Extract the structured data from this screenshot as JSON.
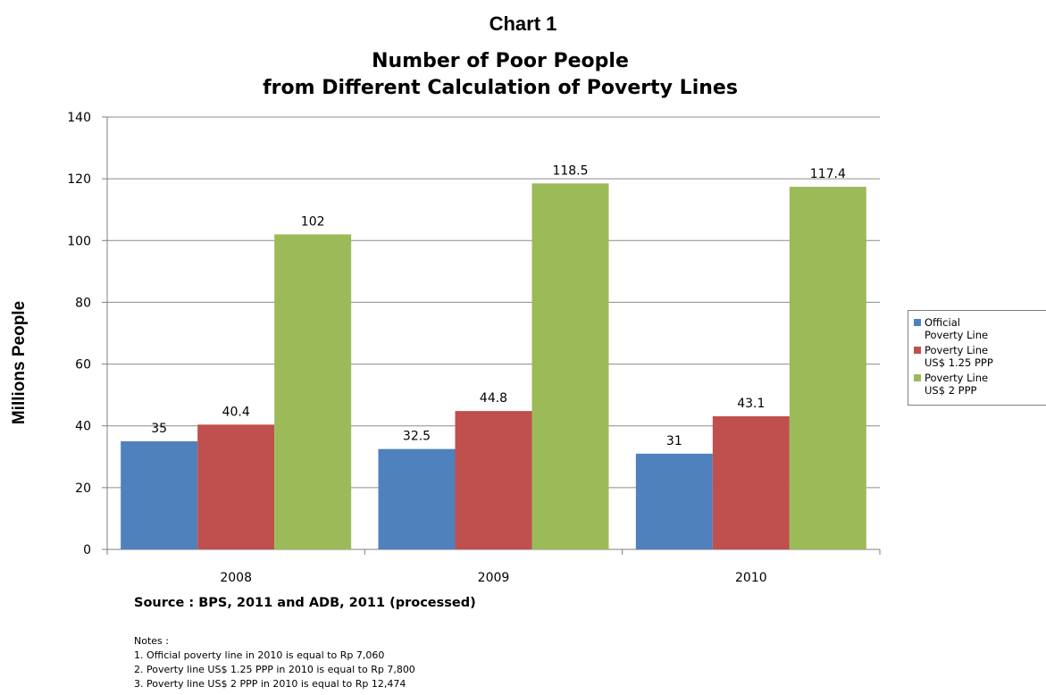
{
  "chart_label": "Chart 1",
  "chart_data": {
    "type": "bar",
    "title": [
      "Number of Poor People",
      "from Different Calculation of Poverty Lines"
    ],
    "ylabel": "Millions People",
    "xlabel": "",
    "categories": [
      "2008",
      "2009",
      "2010"
    ],
    "ylim": [
      0,
      140
    ],
    "yticks": [
      0,
      20,
      40,
      60,
      80,
      100,
      120,
      140
    ],
    "grid": true,
    "legend_position": "right",
    "series": [
      {
        "name": "Official\nPoverty Line",
        "color": "#4f81bd",
        "values": [
          35,
          32.5,
          31
        ]
      },
      {
        "name": "Poverty Line\nUS$ 1.25 PPP",
        "color": "#c0504d",
        "values": [
          40.4,
          44.8,
          43.1
        ]
      },
      {
        "name": "Poverty Line\nUS$ 2 PPP",
        "color": "#9bbb59",
        "values": [
          102,
          118.5,
          117.4
        ]
      }
    ]
  },
  "source": "Source : BPS, 2011 and ADB, 2011 (processed)",
  "notes": [
    "Notes :",
    "1. Official poverty line  in 2010  is equal to Rp  7,060",
    "2. Poverty line US$ 1.25 PPP in 2010 is equal to Rp 7,800",
    "3. Poverty line US$ 2 PPP in 2010 is equal to Rp 12,474"
  ]
}
